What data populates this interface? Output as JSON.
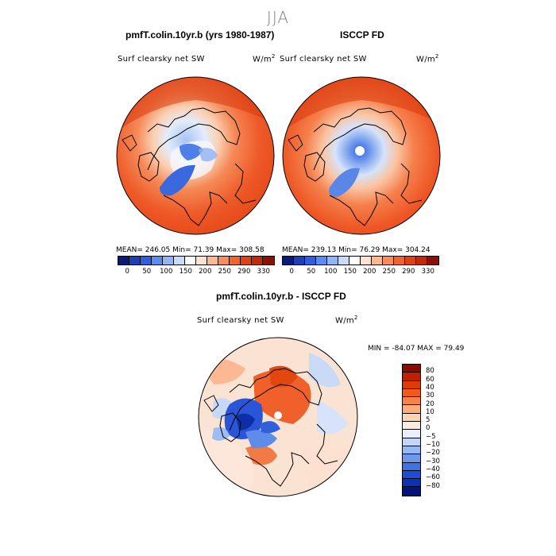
{
  "figure": {
    "season": "JJA",
    "panel_left": {
      "title": "pmfT.colin.10yr.b (yrs 1980-1987)",
      "field": "Surf clearsky net SW",
      "units_base": "W/m",
      "units_exp": "2",
      "stats": "MEAN= 246.05   Min=  71.39   Max= 308.58"
    },
    "panel_right": {
      "title": "ISCCP FD",
      "field": "Surf clearsky net SW",
      "units_base": "W/m",
      "units_exp": "2",
      "stats": "MEAN= 239.13   Min=  76.29   Max= 304.24"
    },
    "panel_diff": {
      "title": "pmfT.colin.10yr.b - ISCCP FD",
      "field": "Surf clearsky net SW",
      "units_base": "W/m",
      "units_exp": "2",
      "minmax": "MIN = -84.07  MAX =  79.49"
    },
    "abs_colorbar": {
      "colors": [
        "#0a1a78",
        "#1e3fb8",
        "#2f5fe0",
        "#5b8cf0",
        "#91b6f6",
        "#c7dbfa",
        "#ffffff",
        "#fde2cf",
        "#fcb990",
        "#f98c5a",
        "#f3632e",
        "#e24012",
        "#c42a06",
        "#8c1203"
      ],
      "tick_labels": [
        "0",
        "50",
        "100",
        "150",
        "200",
        "250",
        "290",
        "330"
      ]
    },
    "diff_colorbar": {
      "colors": [
        "#8a0c00",
        "#c02000",
        "#e03a05",
        "#f25a1c",
        "#f88249",
        "#fbab7c",
        "#fdd3b6",
        "#fdebde",
        "#e8effb",
        "#c2d7f6",
        "#94b9f2",
        "#6b98ec",
        "#4172e3",
        "#1f4ed6",
        "#0d30b8",
        "#00157c"
      ],
      "tick_labels": [
        "80",
        "60",
        "40",
        "30",
        "20",
        "10",
        "5",
        "0",
        "−5",
        "−10",
        "−20",
        "−30",
        "−40",
        "−60",
        "−80"
      ]
    }
  }
}
